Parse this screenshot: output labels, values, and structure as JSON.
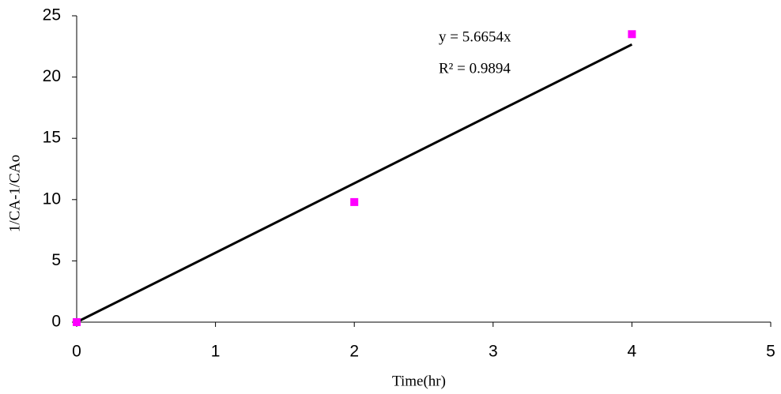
{
  "chart_data": {
    "type": "scatter",
    "x_label": "Time(hr)",
    "y_label": "1/CA-1/CAo",
    "x": [
      0,
      2,
      4
    ],
    "series": [
      {
        "color": "#ff00ff",
        "values": [
          0,
          9.8,
          23.5
        ]
      }
    ],
    "trendline": {
      "slope": 5.6654,
      "x": [
        0,
        4
      ],
      "color": "#000000"
    },
    "annotations": [
      "y = 5.6654x",
      "R² = 0.9894"
    ],
    "xlim": [
      0,
      5
    ],
    "xticks": [
      0,
      1,
      2,
      3,
      4,
      5
    ],
    "ylim": [
      0,
      25
    ],
    "yticks": [
      0,
      5,
      10,
      15,
      20,
      25
    ],
    "grid": false
  }
}
